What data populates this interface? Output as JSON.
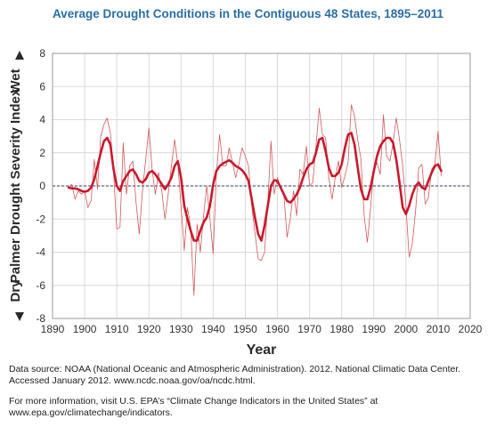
{
  "chart_data": {
    "type": "line",
    "title": "Average Drought Conditions in the Contiguous 48 States, 1895–2011",
    "xlabel": "Year",
    "ylabel": "Palmer Drought Severity Index",
    "ylabel_top": "Wet",
    "ylabel_bottom": "Dry",
    "xlim": [
      1890,
      2020
    ],
    "ylim": [
      -8,
      8
    ],
    "xticks": [
      1890,
      1900,
      1910,
      1920,
      1930,
      1940,
      1950,
      1960,
      1970,
      1980,
      1990,
      2000,
      2010,
      2020
    ],
    "yticks": [
      -8,
      -6,
      -4,
      -2,
      0,
      2,
      4,
      6,
      8
    ],
    "grid": true,
    "zero_line": "dashed",
    "legend": "none",
    "colors": {
      "annual": "#d05a5a",
      "smoothed": "#c8192c",
      "zero_line": "#2b3f7a",
      "title": "#2a6ea6",
      "plot_border": "#999999",
      "grid": "#d9d9d9"
    },
    "series": [
      {
        "style": "thin",
        "x": [
          1895,
          1896,
          1897,
          1898,
          1899,
          1900,
          1901,
          1902,
          1903,
          1904,
          1905,
          1906,
          1907,
          1908,
          1909,
          1910,
          1911,
          1912,
          1913,
          1914,
          1915,
          1916,
          1917,
          1918,
          1919,
          1920,
          1921,
          1922,
          1923,
          1924,
          1925,
          1926,
          1927,
          1928,
          1929,
          1930,
          1931,
          1932,
          1933,
          1934,
          1935,
          1936,
          1937,
          1938,
          1939,
          1940,
          1941,
          1942,
          1943,
          1944,
          1945,
          1946,
          1947,
          1948,
          1949,
          1950,
          1951,
          1952,
          1953,
          1954,
          1955,
          1956,
          1957,
          1958,
          1959,
          1960,
          1961,
          1962,
          1963,
          1964,
          1965,
          1966,
          1967,
          1968,
          1969,
          1970,
          1971,
          1972,
          1973,
          1974,
          1975,
          1976,
          1977,
          1978,
          1979,
          1980,
          1981,
          1982,
          1983,
          1984,
          1985,
          1986,
          1987,
          1988,
          1989,
          1990,
          1991,
          1992,
          1993,
          1994,
          1995,
          1996,
          1997,
          1998,
          1999,
          2000,
          2001,
          2002,
          2003,
          2004,
          2005,
          2006,
          2007,
          2008,
          2009,
          2010,
          2011
        ],
        "values": [
          -0.1,
          0.1,
          -0.8,
          -0.3,
          -0.5,
          -0.3,
          -1.3,
          -0.9,
          1.6,
          -0.2,
          3.0,
          3.7,
          4.1,
          3.2,
          0.8,
          -2.6,
          -2.5,
          2.6,
          -0.5,
          1.2,
          1.5,
          -1.0,
          -2.9,
          -0.3,
          1.6,
          3.5,
          1.0,
          -0.5,
          0.8,
          -0.3,
          -2.0,
          -0.5,
          1.2,
          2.8,
          1.3,
          -1.2,
          -3.9,
          -1.3,
          -2.5,
          -6.6,
          -2.3,
          -4.0,
          -1.8,
          0.0,
          -2.0,
          -4.1,
          0.7,
          3.1,
          1.2,
          1.2,
          2.3,
          1.4,
          0.5,
          1.3,
          2.3,
          1.8,
          1.2,
          -1.2,
          -2.8,
          -4.4,
          -4.5,
          -4.0,
          -1.0,
          2.7,
          -0.5,
          0.5,
          -0.2,
          -0.5,
          -3.1,
          -2.0,
          -0.3,
          -1.8,
          1.0,
          0.7,
          2.4,
          0.0,
          0.2,
          2.4,
          4.7,
          3.1,
          2.9,
          0.5,
          -0.8,
          0.5,
          1.5,
          -0.1,
          0.6,
          1.4,
          4.9,
          4.2,
          2.8,
          1.6,
          -1.8,
          -3.4,
          -1.3,
          1.0,
          1.4,
          0.7,
          4.3,
          1.8,
          1.5,
          2.6,
          4.1,
          2.8,
          1.2,
          -1.2,
          -4.3,
          -3.5,
          -1.5,
          1.1,
          1.3,
          -1.1,
          -0.7,
          1.0,
          1.3,
          3.3,
          0.6
        ]
      },
      {
        "style": "thick",
        "x": [
          1895,
          1896,
          1897,
          1898,
          1899,
          1900,
          1901,
          1902,
          1903,
          1904,
          1905,
          1906,
          1907,
          1908,
          1909,
          1910,
          1911,
          1912,
          1913,
          1914,
          1915,
          1916,
          1917,
          1918,
          1919,
          1920,
          1921,
          1922,
          1923,
          1924,
          1925,
          1926,
          1927,
          1928,
          1929,
          1930,
          1931,
          1932,
          1933,
          1934,
          1935,
          1936,
          1937,
          1938,
          1939,
          1940,
          1941,
          1942,
          1943,
          1944,
          1945,
          1946,
          1947,
          1948,
          1949,
          1950,
          1951,
          1952,
          1953,
          1954,
          1955,
          1956,
          1957,
          1958,
          1959,
          1960,
          1961,
          1962,
          1963,
          1964,
          1965,
          1966,
          1967,
          1968,
          1969,
          1970,
          1971,
          1972,
          1973,
          1974,
          1975,
          1976,
          1977,
          1978,
          1979,
          1980,
          1981,
          1982,
          1983,
          1984,
          1985,
          1986,
          1987,
          1988,
          1989,
          1990,
          1991,
          1992,
          1993,
          1994,
          1995,
          1996,
          1997,
          1998,
          1999,
          2000,
          2001,
          2002,
          2003,
          2004,
          2005,
          2006,
          2007,
          2008,
          2009,
          2010,
          2011
        ],
        "values": [
          -0.1,
          -0.15,
          -0.15,
          -0.2,
          -0.3,
          -0.35,
          -0.3,
          -0.1,
          0.4,
          1.2,
          2.0,
          2.7,
          2.9,
          2.5,
          1.0,
          0.0,
          -0.3,
          0.3,
          0.6,
          0.9,
          1.0,
          0.7,
          0.3,
          0.2,
          0.4,
          0.8,
          0.9,
          0.7,
          0.4,
          0.1,
          -0.2,
          0.1,
          0.5,
          1.2,
          1.5,
          0.5,
          -1.2,
          -2.0,
          -2.7,
          -3.3,
          -3.3,
          -2.7,
          -2.2,
          -1.9,
          -1.2,
          0.1,
          0.9,
          1.2,
          1.35,
          1.45,
          1.55,
          1.4,
          1.2,
          1.1,
          0.95,
          0.7,
          0.3,
          -0.8,
          -1.9,
          -2.9,
          -3.3,
          -2.4,
          -1.2,
          0.0,
          0.35,
          0.3,
          -0.1,
          -0.5,
          -0.9,
          -1.0,
          -0.8,
          -0.5,
          -0.1,
          0.5,
          1.0,
          1.3,
          1.4,
          2.0,
          2.8,
          2.9,
          2.1,
          1.1,
          0.6,
          0.6,
          0.8,
          1.3,
          2.3,
          3.1,
          3.2,
          2.5,
          1.1,
          -0.2,
          -0.8,
          -0.8,
          -0.1,
          0.9,
          1.8,
          2.4,
          2.7,
          2.9,
          2.9,
          2.6,
          1.6,
          0.2,
          -1.3,
          -1.7,
          -1.2,
          -0.5,
          0.0,
          0.2,
          -0.1,
          -0.2,
          0.3,
          0.8,
          1.2,
          1.3,
          0.9
        ]
      }
    ]
  },
  "notes": {
    "source": "Data source: NOAA (National Oceanic and Atmospheric Administration). 2012. National Climatic Data Center. Accessed January 2012. www.ncdc.noaa.gov/oa/ncdc.html.",
    "info": "For more information, visit U.S. EPA’s “Climate Change Indicators in the United States” at www.epa.gov/climatechange/indicators."
  }
}
